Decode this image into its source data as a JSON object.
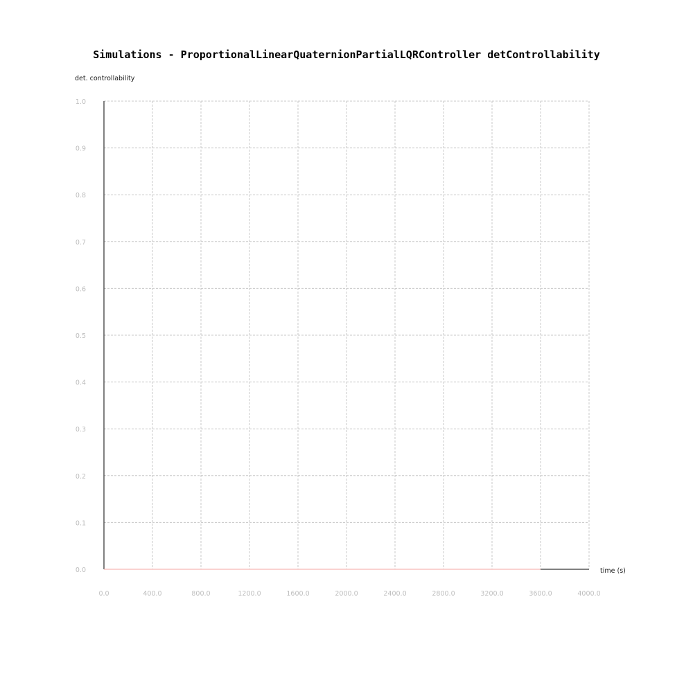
{
  "chart_data": {
    "type": "line",
    "title": "Simulations - ProportionalLinearQuaternionPartialLQRController detControllability",
    "xlabel": "time (s)",
    "ylabel": "det. controllability",
    "xlim": [
      0.0,
      4000.0
    ],
    "ylim": [
      0.0,
      1.0
    ],
    "x_ticks": [
      "0.0",
      "400.0",
      "800.0",
      "1200.0",
      "1600.0",
      "2000.0",
      "2400.0",
      "2800.0",
      "3200.0",
      "3600.0",
      "4000.0"
    ],
    "y_ticks": [
      "0.0",
      "0.1",
      "0.2",
      "0.3",
      "0.4",
      "0.5",
      "0.6",
      "0.7",
      "0.8",
      "0.9",
      "1.0"
    ],
    "grid": true,
    "series": [
      {
        "color": "#f4a6a0",
        "x": [
          0.0,
          3600.0
        ],
        "y": [
          0.0,
          0.0
        ]
      }
    ]
  }
}
